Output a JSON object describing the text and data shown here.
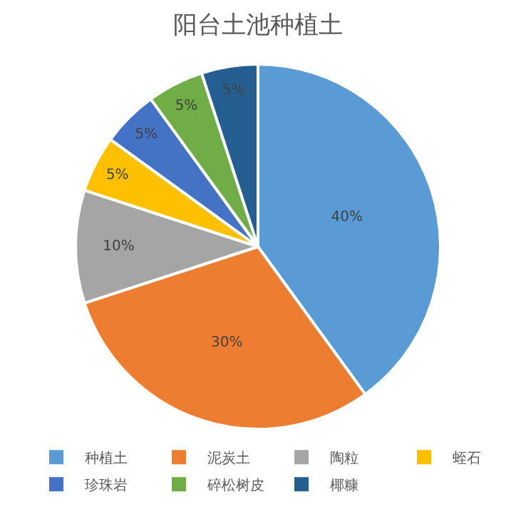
{
  "chart_data": {
    "type": "pie",
    "title": "阳台土池种植土",
    "categories": [
      "种植土",
      "泥炭土",
      "陶粒",
      "蛭石",
      "珍珠岩",
      "碎松树皮",
      "椰糠"
    ],
    "values": [
      40,
      30,
      10,
      5,
      5,
      5,
      5
    ],
    "colors": [
      "#5b9bd5",
      "#ed7d31",
      "#a5a5a5",
      "#ffc000",
      "#4472c4",
      "#70ad47",
      "#255e91"
    ],
    "value_labels": [
      "40%",
      "30%",
      "10%",
      "5%",
      "5%",
      "5%",
      "5%"
    ],
    "legend": "bottom"
  }
}
